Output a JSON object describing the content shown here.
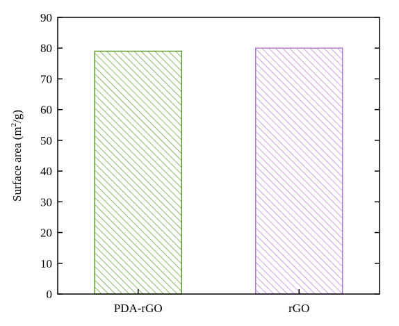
{
  "chart_data": {
    "type": "bar",
    "title": "",
    "xlabel": "",
    "ylabel_main": "Surface area (m",
    "ylabel_sup": "2",
    "ylabel_tail": "/g)",
    "categories": [
      "PDA-rGO",
      "rGO"
    ],
    "values": [
      79,
      80
    ],
    "ylim": [
      0,
      90
    ],
    "yticks": [
      "0",
      "10",
      "20",
      "30",
      "40",
      "50",
      "60",
      "70",
      "80",
      "90"
    ],
    "grid": false,
    "legend": "none",
    "bar_colors": [
      "#5b9a2b",
      "#b57ad6"
    ],
    "bar_fill": "diagonal-hatch"
  }
}
